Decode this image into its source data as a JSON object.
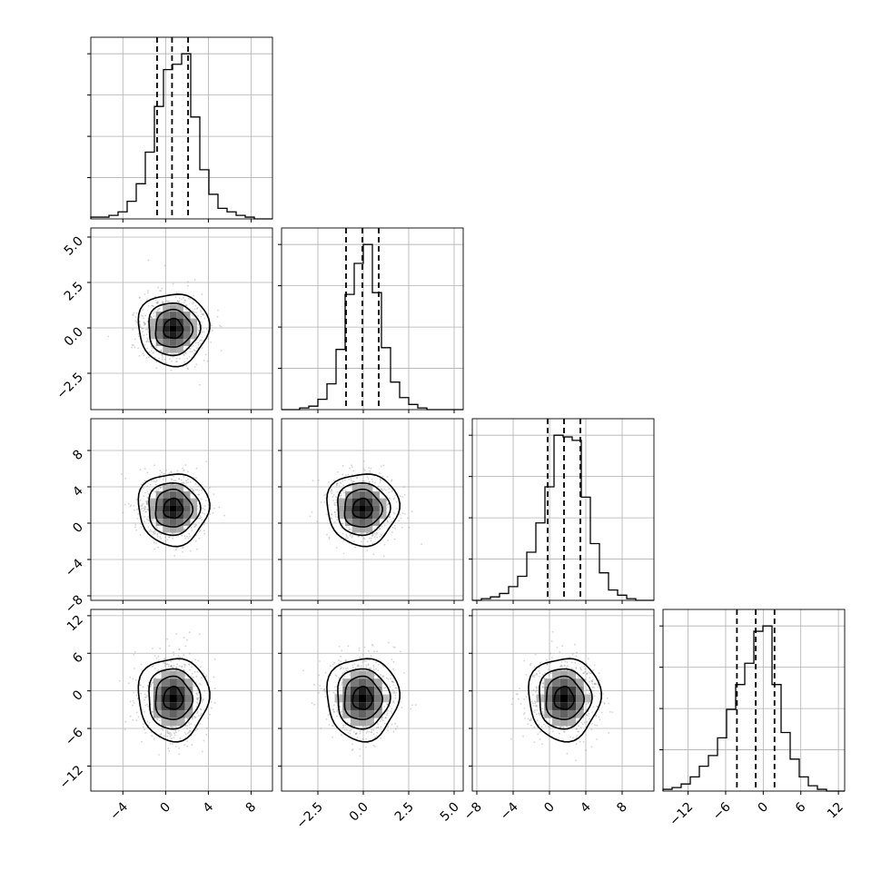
{
  "chart_data": {
    "type": "corner",
    "title": "",
    "grid": true,
    "variables": [
      {
        "index": 0,
        "range": [
          -7,
          10
        ],
        "ticks": [
          -4,
          0,
          4,
          8
        ],
        "tick_labels": [
          "−4",
          "0",
          "4",
          "8"
        ],
        "quantiles": [
          -0.8,
          0.6,
          2.1
        ],
        "mean": 0.7,
        "std": 1.5,
        "hist": {
          "edges": [
            -7,
            -6.15,
            -5.3,
            -4.45,
            -3.6,
            -2.75,
            -1.9,
            -1.05,
            -0.2,
            0.65,
            1.5,
            2.35,
            3.2,
            4.05,
            4.9,
            5.75,
            6.6,
            7.45,
            8.3,
            9.15,
            10
          ],
          "counts": [
            0.01,
            0.01,
            0.02,
            0.04,
            0.1,
            0.2,
            0.38,
            0.64,
            0.85,
            0.88,
            0.94,
            0.58,
            0.28,
            0.14,
            0.06,
            0.04,
            0.02,
            0.01,
            0.0,
            0.0
          ]
        }
      },
      {
        "index": 1,
        "range": [
          -4.5,
          5.5
        ],
        "ticks": [
          -2.5,
          0.0,
          2.5,
          5.0
        ],
        "tick_labels": [
          "−2.5",
          "0.0",
          "2.5",
          "5.0"
        ],
        "quantiles": [
          -0.95,
          -0.05,
          0.85
        ],
        "mean": -0.05,
        "std": 0.9,
        "hist": {
          "edges": [
            -4.5,
            -4,
            -3.5,
            -3,
            -2.5,
            -2,
            -1.5,
            -1,
            -0.5,
            0,
            0.5,
            1,
            1.5,
            2,
            2.5,
            3,
            3.5,
            4,
            4.5,
            5,
            5.5
          ],
          "counts": [
            0.0,
            0.0,
            0.01,
            0.02,
            0.06,
            0.15,
            0.35,
            0.67,
            0.85,
            0.96,
            0.68,
            0.36,
            0.16,
            0.07,
            0.03,
            0.01,
            0.0,
            0.0,
            0.0,
            0.0
          ]
        }
      },
      {
        "index": 2,
        "range": [
          -8.5,
          11.5
        ],
        "ticks": [
          -8,
          -4,
          0,
          4,
          8
        ],
        "tick_labels": [
          "−8",
          "−4",
          "0",
          "4",
          "8"
        ],
        "quantiles": [
          -0.2,
          1.6,
          3.4
        ],
        "mean": 1.6,
        "std": 1.8,
        "hist": {
          "edges": [
            -8.5,
            -7.5,
            -6.5,
            -5.5,
            -4.5,
            -3.5,
            -2.5,
            -1.5,
            -0.5,
            0.5,
            1.5,
            2.5,
            3.5,
            4.5,
            5.5,
            6.5,
            7.5,
            8.5,
            9.5,
            10.5,
            11.5
          ],
          "counts": [
            0.0,
            0.01,
            0.02,
            0.04,
            0.08,
            0.14,
            0.28,
            0.45,
            0.66,
            0.96,
            0.95,
            0.93,
            0.6,
            0.33,
            0.16,
            0.06,
            0.03,
            0.01,
            0.0,
            0.0
          ]
        }
      },
      {
        "index": 3,
        "range": [
          -16,
          13
        ],
        "ticks": [
          -12,
          -6,
          0,
          6,
          12
        ],
        "tick_labels": [
          "−12",
          "−6",
          "0",
          "6",
          "12"
        ],
        "quantiles": [
          -4.2,
          -1.2,
          1.8
        ],
        "mean": -1.2,
        "std": 3.0,
        "hist": {
          "edges": [
            -16,
            -14.55,
            -13.1,
            -11.65,
            -10.2,
            -8.75,
            -7.3,
            -5.85,
            -4.4,
            -2.95,
            -1.5,
            -0.05,
            1.4,
            2.85,
            4.3,
            5.75,
            7.2,
            8.65,
            10.1,
            11.55,
            13
          ],
          "counts": [
            0.01,
            0.02,
            0.04,
            0.08,
            0.14,
            0.2,
            0.3,
            0.46,
            0.6,
            0.72,
            0.9,
            0.93,
            0.6,
            0.33,
            0.18,
            0.08,
            0.03,
            0.01,
            0.0,
            0.0
          ]
        }
      }
    ],
    "pairs": [
      {
        "row": 1,
        "col": 0,
        "center": [
          0.7,
          -0.05
        ],
        "spread": [
          1.5,
          0.9
        ]
      },
      {
        "row": 2,
        "col": 0,
        "center": [
          0.7,
          1.6
        ],
        "spread": [
          1.5,
          1.8
        ]
      },
      {
        "row": 2,
        "col": 1,
        "center": [
          -0.05,
          1.6
        ],
        "spread": [
          0.9,
          1.8
        ]
      },
      {
        "row": 3,
        "col": 0,
        "center": [
          0.7,
          -1.2
        ],
        "spread": [
          1.5,
          3.0
        ]
      },
      {
        "row": 3,
        "col": 1,
        "center": [
          -0.05,
          -1.2
        ],
        "spread": [
          0.9,
          3.0
        ]
      },
      {
        "row": 3,
        "col": 2,
        "center": [
          1.6,
          -1.2
        ],
        "spread": [
          1.8,
          3.0
        ]
      }
    ],
    "contour_levels_sigma": [
      0.6,
      1.15,
      1.6,
      2.2
    ],
    "colors": {
      "line": "#000000",
      "grid": "#b0b0b0",
      "points": "#808080",
      "density_light": "#d9d9d9",
      "density_dark": "#000000"
    }
  }
}
